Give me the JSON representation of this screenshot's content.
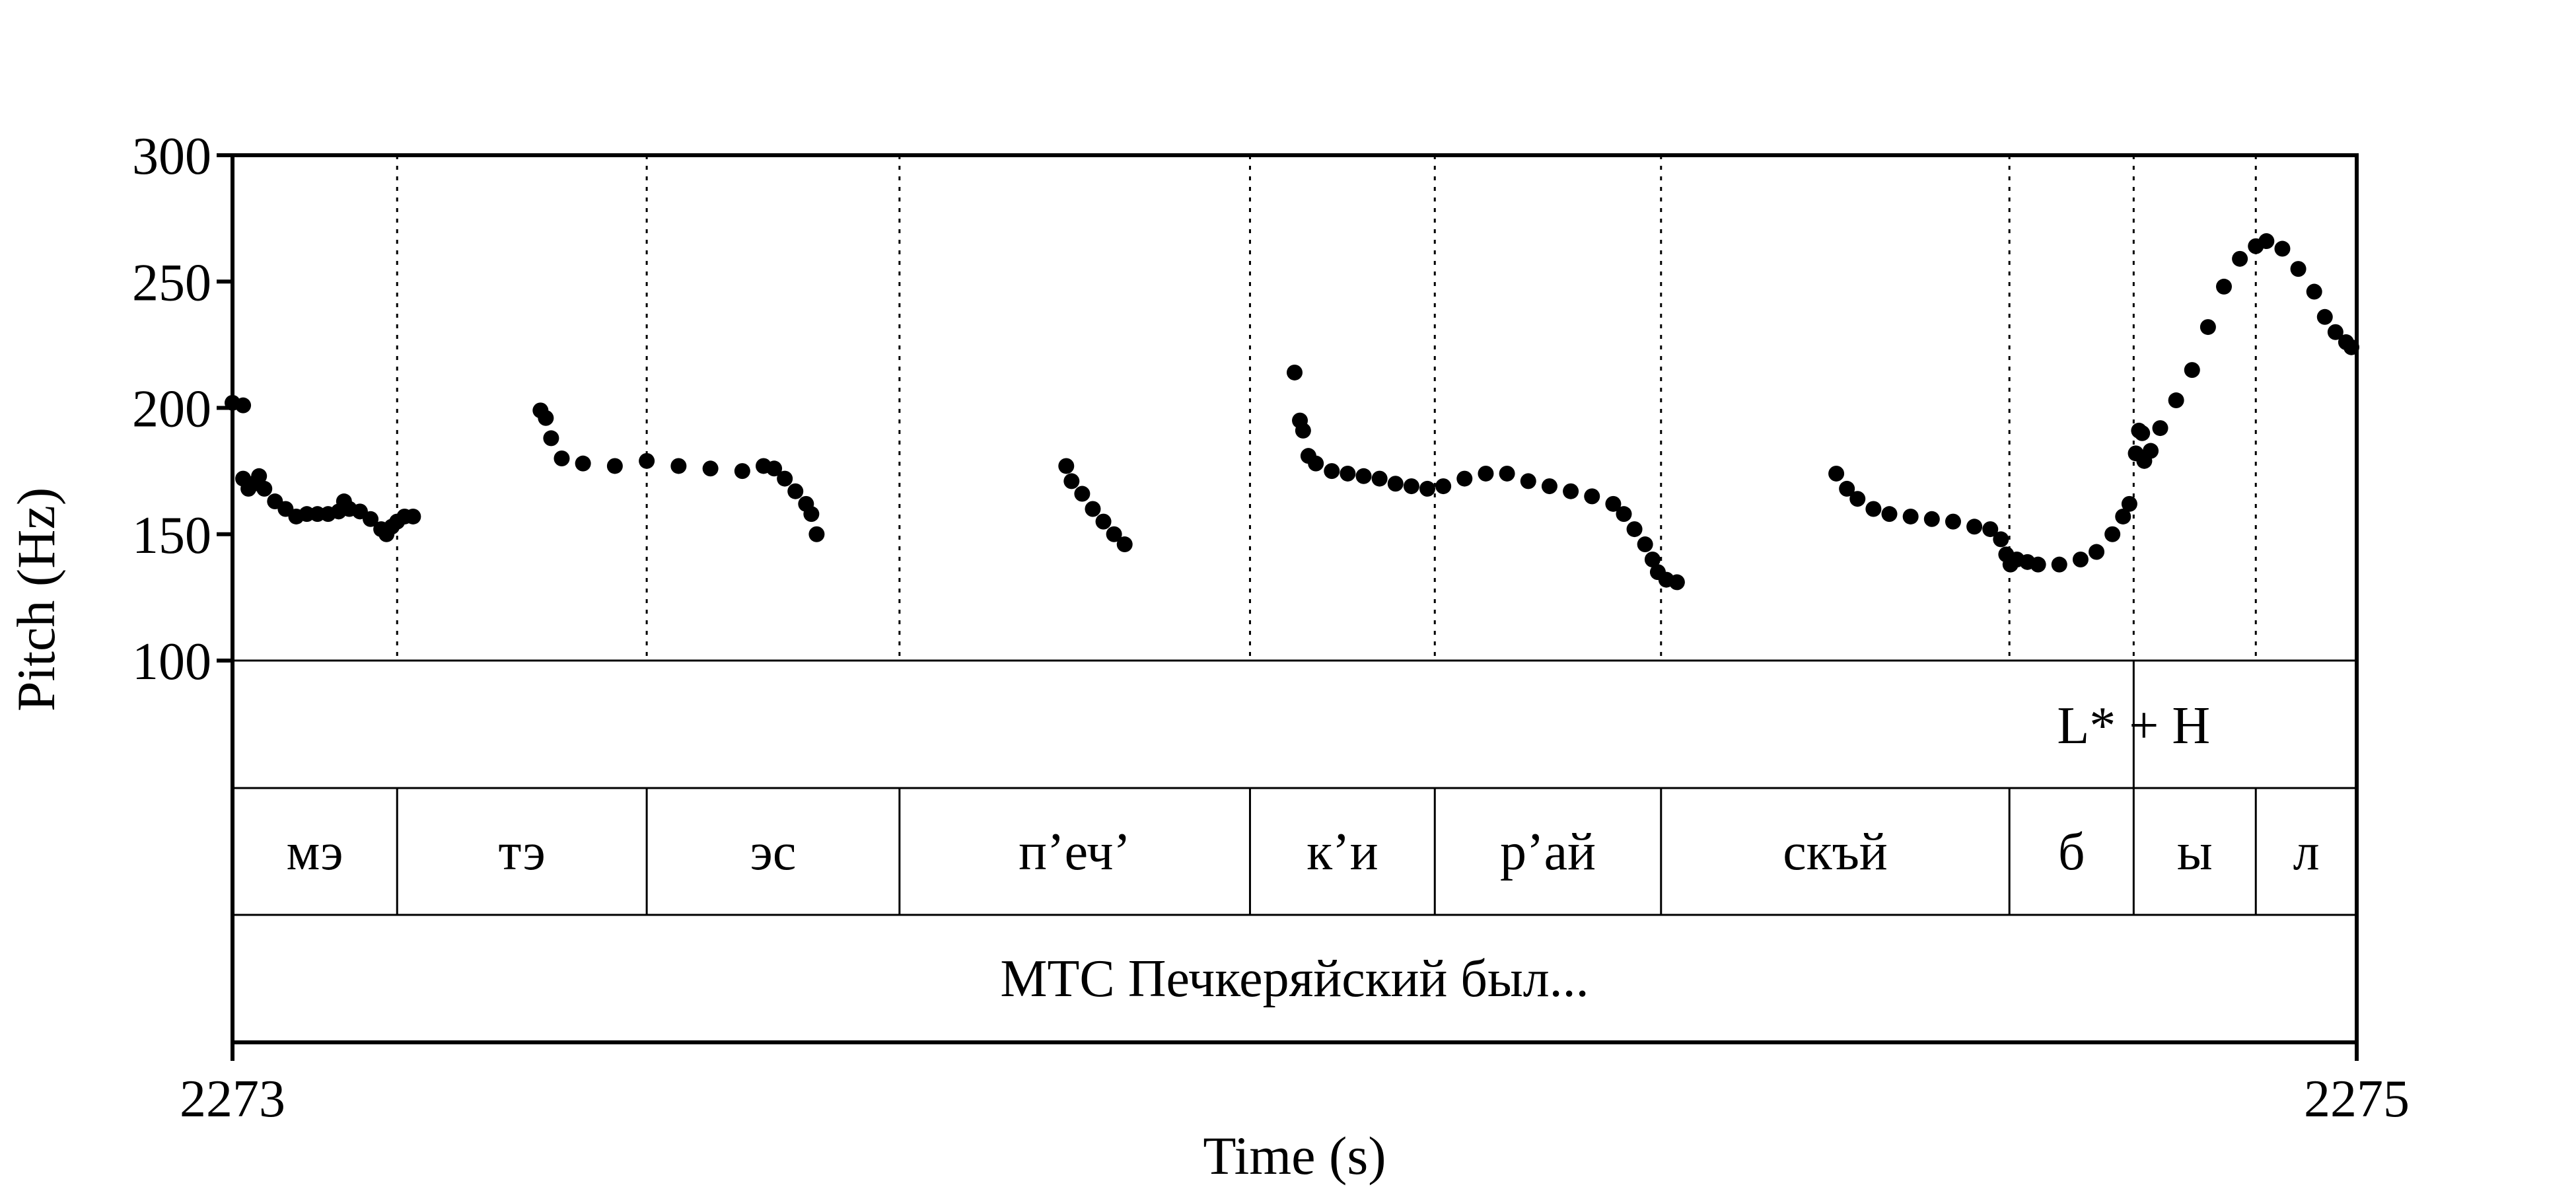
{
  "chart_data": {
    "type": "scatter",
    "title": "",
    "xlabel": "Time (s)",
    "ylabel": "Pitch (Hz)",
    "xlim": [
      2273,
      2275
    ],
    "ylim": [
      100,
      300
    ],
    "x_tick_labels": [
      "2273",
      "2275"
    ],
    "y_tick_labels": [
      "300",
      "250",
      "200",
      "150",
      "100"
    ],
    "y_ticks": [
      300,
      250,
      200,
      150,
      100
    ],
    "boundaries": [
      2273.155,
      2273.39,
      2273.628,
      2273.958,
      2274.132,
      2274.345,
      2274.673,
      2274.79,
      2274.905
    ],
    "tone_tier": {
      "boundary": 2274.79,
      "label": "L* + H"
    },
    "syllables": [
      {
        "label": "мэ",
        "start": 2273.0,
        "end": 2273.155
      },
      {
        "label": "тэ",
        "start": 2273.155,
        "end": 2273.39
      },
      {
        "label": "эс",
        "start": 2273.39,
        "end": 2273.628
      },
      {
        "label": "п’еч’",
        "start": 2273.628,
        "end": 2273.958
      },
      {
        "label": "к’и",
        "start": 2273.958,
        "end": 2274.132
      },
      {
        "label": "р’ай",
        "start": 2274.132,
        "end": 2274.345
      },
      {
        "label": "скъй",
        "start": 2274.345,
        "end": 2274.673
      },
      {
        "label": "б",
        "start": 2274.673,
        "end": 2274.79
      },
      {
        "label": "ы",
        "start": 2274.79,
        "end": 2274.905
      },
      {
        "label": "л",
        "start": 2274.905,
        "end": 2275.0
      }
    ],
    "utterance": "МТС Печкеряйский был...",
    "pitch_segments": [
      [
        [
          2273.0,
          202
        ],
        [
          2273.01,
          201
        ],
        [
          2273.01,
          172
        ],
        [
          2273.015,
          168
        ],
        [
          2273.02,
          170
        ],
        [
          2273.025,
          173
        ],
        [
          2273.03,
          168
        ],
        [
          2273.04,
          163
        ],
        [
          2273.05,
          160
        ],
        [
          2273.06,
          157
        ],
        [
          2273.07,
          158
        ],
        [
          2273.08,
          158
        ],
        [
          2273.09,
          158
        ],
        [
          2273.1,
          159
        ],
        [
          2273.105,
          163
        ],
        [
          2273.11,
          160
        ],
        [
          2273.12,
          159
        ],
        [
          2273.13,
          156
        ],
        [
          2273.14,
          152
        ],
        [
          2273.145,
          150
        ],
        [
          2273.15,
          153
        ],
        [
          2273.155,
          155
        ],
        [
          2273.162,
          157
        ],
        [
          2273.17,
          157
        ]
      ],
      [
        [
          2273.29,
          199
        ],
        [
          2273.295,
          196
        ],
        [
          2273.3,
          188
        ],
        [
          2273.31,
          180
        ],
        [
          2273.33,
          178
        ],
        [
          2273.36,
          177
        ],
        [
          2273.39,
          179
        ],
        [
          2273.42,
          177
        ],
        [
          2273.45,
          176
        ],
        [
          2273.48,
          175
        ],
        [
          2273.5,
          177
        ],
        [
          2273.51,
          176
        ],
        [
          2273.52,
          172
        ],
        [
          2273.53,
          167
        ],
        [
          2273.54,
          162
        ],
        [
          2273.545,
          158
        ],
        [
          2273.55,
          150
        ]
      ],
      [
        [
          2273.785,
          177
        ],
        [
          2273.79,
          171
        ],
        [
          2273.8,
          166
        ],
        [
          2273.81,
          160
        ],
        [
          2273.82,
          155
        ],
        [
          2273.83,
          150
        ],
        [
          2273.84,
          146
        ]
      ],
      [
        [
          2274.0,
          214
        ],
        [
          2274.005,
          195
        ],
        [
          2274.008,
          191
        ],
        [
          2274.013,
          181
        ],
        [
          2274.02,
          178
        ],
        [
          2274.035,
          175
        ],
        [
          2274.05,
          174
        ],
        [
          2274.065,
          173
        ],
        [
          2274.08,
          172
        ],
        [
          2274.095,
          170
        ],
        [
          2274.11,
          169
        ],
        [
          2274.125,
          168
        ],
        [
          2274.14,
          169
        ],
        [
          2274.16,
          172
        ],
        [
          2274.18,
          174
        ],
        [
          2274.2,
          174
        ],
        [
          2274.22,
          171
        ],
        [
          2274.24,
          169
        ],
        [
          2274.26,
          167
        ],
        [
          2274.28,
          165
        ],
        [
          2274.3,
          162
        ],
        [
          2274.31,
          158
        ],
        [
          2274.32,
          152
        ],
        [
          2274.33,
          146
        ],
        [
          2274.337,
          140
        ],
        [
          2274.342,
          135
        ],
        [
          2274.35,
          132
        ],
        [
          2274.36,
          131
        ]
      ],
      [
        [
          2274.51,
          174
        ],
        [
          2274.52,
          168
        ],
        [
          2274.53,
          164
        ],
        [
          2274.545,
          160
        ],
        [
          2274.56,
          158
        ],
        [
          2274.58,
          157
        ],
        [
          2274.6,
          156
        ],
        [
          2274.62,
          155
        ],
        [
          2274.64,
          153
        ],
        [
          2274.655,
          152
        ],
        [
          2274.665,
          148
        ],
        [
          2274.67,
          142
        ],
        [
          2274.674,
          138
        ],
        [
          2274.68,
          140
        ],
        [
          2274.69,
          139
        ],
        [
          2274.7,
          138
        ],
        [
          2274.72,
          138
        ],
        [
          2274.74,
          140
        ],
        [
          2274.755,
          143
        ],
        [
          2274.77,
          150
        ],
        [
          2274.78,
          157
        ],
        [
          2274.786,
          162
        ]
      ],
      [
        [
          2274.792,
          182
        ],
        [
          2274.795,
          191
        ],
        [
          2274.798,
          190
        ],
        [
          2274.8,
          179
        ],
        [
          2274.806,
          183
        ],
        [
          2274.815,
          192
        ],
        [
          2274.83,
          203
        ],
        [
          2274.845,
          215
        ],
        [
          2274.86,
          232
        ],
        [
          2274.875,
          248
        ],
        [
          2274.89,
          259
        ],
        [
          2274.905,
          264
        ],
        [
          2274.915,
          266
        ],
        [
          2274.93,
          263
        ],
        [
          2274.945,
          255
        ],
        [
          2274.96,
          246
        ],
        [
          2274.97,
          236
        ],
        [
          2274.98,
          230
        ],
        [
          2274.99,
          226
        ],
        [
          2274.995,
          224
        ]
      ]
    ]
  }
}
